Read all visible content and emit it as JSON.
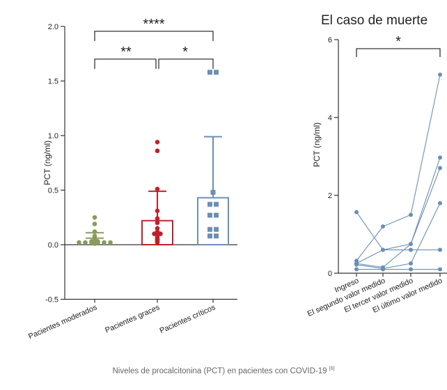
{
  "caption": {
    "text": "Niveles de procalcitonina (PCT) en pacientes con COVID-19",
    "ref": "[6]"
  },
  "colors": {
    "moderados": "#8a9a5b",
    "graves": "#c0202a",
    "criticos": "#6b8fb4",
    "axis": "#333333",
    "text": "#222222"
  },
  "chart_data": [
    {
      "type": "bar",
      "title": "",
      "ylabel": "PCT (ng/ml)",
      "ylim": [
        -0.5,
        2.0
      ],
      "yticks": [
        "2.0",
        "1.5",
        "1.0",
        "0.5",
        "0.0",
        "-0.5"
      ],
      "categories": [
        "Pacientes moderados",
        "Pacientes graces",
        "Pacientes críticos"
      ],
      "values": [
        0.06,
        0.22,
        0.43
      ],
      "error_upper": [
        0.11,
        0.49,
        0.99
      ],
      "has_bar": [
        false,
        true,
        true
      ],
      "points": [
        [
          0.25,
          0.19,
          0.12,
          0.08,
          0.06,
          0.05,
          0.04,
          0.03,
          0.03,
          0.02,
          0.02,
          0.02,
          0.02,
          0.02,
          0.02,
          0.01
        ],
        [
          0.94,
          0.86,
          0.51,
          0.31,
          0.24,
          0.2,
          0.15,
          0.12,
          0.1,
          0.1,
          0.09,
          0.08,
          0.06,
          0.05,
          0.04,
          0.03,
          0.02
        ],
        [
          1.58,
          1.58,
          0.48,
          0.37,
          0.37,
          0.27,
          0.27,
          0.14,
          0.14,
          0.08,
          0.08
        ]
      ],
      "significance": [
        {
          "from": 0,
          "to": 2,
          "label": "****"
        },
        {
          "from": 0,
          "to": 1,
          "label": "**"
        },
        {
          "from": 1,
          "to": 2,
          "label": "*"
        }
      ]
    },
    {
      "type": "line",
      "title": "El caso de muerte",
      "ylabel": "PCT (ng/ml)",
      "ylim": [
        0,
        6
      ],
      "yticks": [
        "6",
        "4",
        "2",
        "0"
      ],
      "categories": [
        "Ingreso",
        "El segundo valor medido",
        "El tercer valor medido",
        "El último valor medido"
      ],
      "series": [
        {
          "values": [
            1.57,
            0.6,
            0.6,
            0.6
          ]
        },
        {
          "values": [
            0.32,
            1.2,
            1.5,
            5.1
          ]
        },
        {
          "values": [
            0.25,
            0.15,
            0.75,
            2.97
          ]
        },
        {
          "values": [
            0.25,
            0.6,
            0.75,
            2.7
          ]
        },
        {
          "values": [
            0.22,
            0.12,
            0.25,
            1.8
          ]
        },
        {
          "values": [
            0.1,
            0.1,
            0.1,
            0.1
          ]
        }
      ],
      "significance": [
        {
          "from": 0,
          "to": 3,
          "label": "*"
        }
      ]
    }
  ]
}
